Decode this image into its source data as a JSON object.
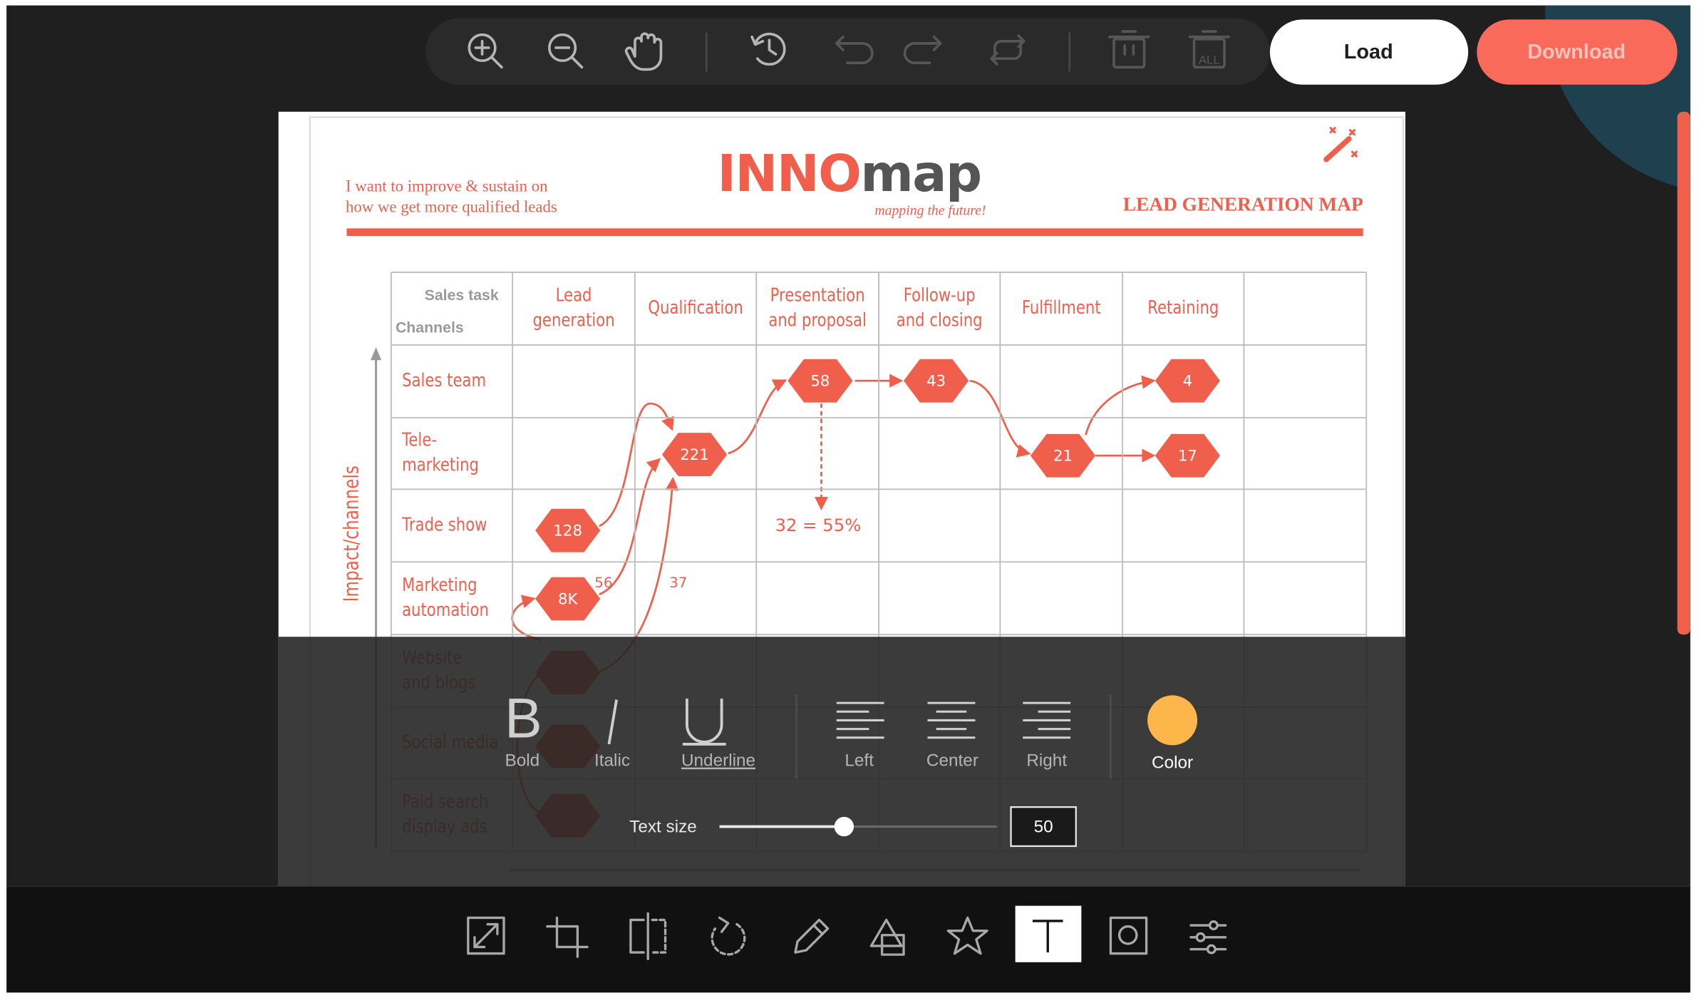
{
  "toolbar": {
    "load": "Load",
    "download": "Download"
  },
  "document": {
    "goal": [
      "I want to improve & sustain on",
      "how we get more qualified leads"
    ],
    "logo": {
      "bold": "INNO",
      "light": "map",
      "tagline": "mapping the future!"
    },
    "map_title": "LEAD GENERATION MAP",
    "corner": {
      "top": "Sales task",
      "left": "Channels"
    },
    "columns": [
      [
        "Lead",
        "generation"
      ],
      [
        "Qualification"
      ],
      [
        "Presentation",
        "and proposal"
      ],
      [
        "Follow-up",
        "and closing"
      ],
      [
        "Fulfillment"
      ],
      [
        "Retaining"
      ]
    ],
    "rows": [
      [
        "Sales team"
      ],
      [
        "Tele-",
        "marketing"
      ],
      [
        "Trade show"
      ],
      [
        "Marketing",
        "automation"
      ],
      [
        "Website",
        "and blogs"
      ],
      [
        "Social media"
      ],
      [
        "Paid search",
        "display ads"
      ]
    ],
    "axis_label": "Impact/channels",
    "nodes": [
      58,
      43,
      4,
      221,
      21,
      17,
      128,
      "8K"
    ],
    "annotations": [
      "32 = 55%",
      "56",
      "37"
    ]
  },
  "text_panel": {
    "buttons": [
      "Bold",
      "Italic",
      "Underline",
      "Left",
      "Center",
      "Right",
      "Color"
    ],
    "size_label": "Text size",
    "size_value": 50
  }
}
